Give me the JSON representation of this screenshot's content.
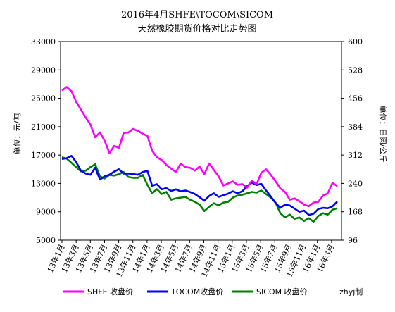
{
  "chart_data": {
    "type": "line",
    "title": "2016年4月SHFE\\TOCOM\\SICOM",
    "subtitle": "天然橡胶期货价格对比走势图",
    "ylabel_left": "单位：元/吨",
    "ylabel_right": "单位：日圆/公斤",
    "ylim_left": [
      5000,
      33000
    ],
    "ylim_right": [
      96,
      600
    ],
    "yticks_left": [
      "33000",
      "29000",
      "25000",
      "21000",
      "17000",
      "13000",
      "9000",
      "5000"
    ],
    "yticks_right": [
      "600",
      "528",
      "456",
      "384",
      "312",
      "240",
      "168",
      "96"
    ],
    "grid": false,
    "xticks": [
      "13年1月",
      "13年3月",
      "13年5月",
      "13年7月",
      "13年9月",
      "13年11月",
      "14年1月",
      "14年3月",
      "14年5月",
      "14年7月",
      "14年9月",
      "14年11月",
      "15年1月",
      "15年3月",
      "15年5月",
      "15年7月",
      "15年9月",
      "15年11月",
      "16年1月",
      "16年3月"
    ],
    "series": [
      {
        "name": "SHFE 收盘价",
        "axis": "left",
        "color": "#ff00ff",
        "values": [
          26100,
          26600,
          26000,
          24500,
          23400,
          22300,
          21300,
          19500,
          20200,
          19000,
          17300,
          18300,
          18000,
          20100,
          20200,
          20700,
          20400,
          20000,
          19700,
          17600,
          16700,
          16300,
          15600,
          15100,
          14600,
          15800,
          15300,
          15200,
          14800,
          15400,
          14300,
          15800,
          14900,
          14000,
          12700,
          13000,
          13300,
          12800,
          12900,
          12400,
          13400,
          12900,
          14500,
          15000,
          14200,
          13300,
          12300,
          11800,
          10700,
          10900,
          10500,
          10000,
          9800,
          10300,
          10400,
          11300,
          11600,
          13100,
          12600
        ]
      },
      {
        "name": "TOCOM收盘价",
        "axis": "right",
        "color": "#0000ff",
        "values": [
          302,
          304,
          310,
          294,
          272,
          265,
          262,
          280,
          250,
          258,
          262,
          270,
          276,
          265,
          265,
          264,
          262,
          269,
          272,
          234,
          238,
          225,
          228,
          221,
          225,
          220,
          222,
          218,
          213,
          205,
          196,
          208,
          215,
          206,
          210,
          214,
          220,
          215,
          220,
          233,
          242,
          236,
          239,
          222,
          207,
          190,
          178,
          186,
          184,
          176,
          168,
          171,
          160,
          163,
          175,
          178,
          177,
          182,
          194
        ]
      },
      {
        "name": "SICOM 收盘价",
        "axis": "left",
        "color": "#008000",
        "values": [
          16700,
          16500,
          15900,
          15300,
          14700,
          14800,
          15300,
          15700,
          14000,
          13700,
          14200,
          14100,
          14300,
          14600,
          13900,
          13800,
          13800,
          14200,
          12800,
          11600,
          12200,
          11500,
          11800,
          10700,
          10900,
          11000,
          11100,
          10700,
          10400,
          10000,
          9100,
          9700,
          10200,
          9900,
          10300,
          10400,
          11000,
          11300,
          11400,
          11600,
          11800,
          11700,
          12000,
          11500,
          11000,
          10300,
          8800,
          8200,
          8600,
          8000,
          8200,
          7700,
          8100,
          7600,
          8400,
          8800,
          8600,
          9300,
          9500
        ]
      }
    ],
    "legend_position": "bottom",
    "annotation": "zhyj制"
  }
}
